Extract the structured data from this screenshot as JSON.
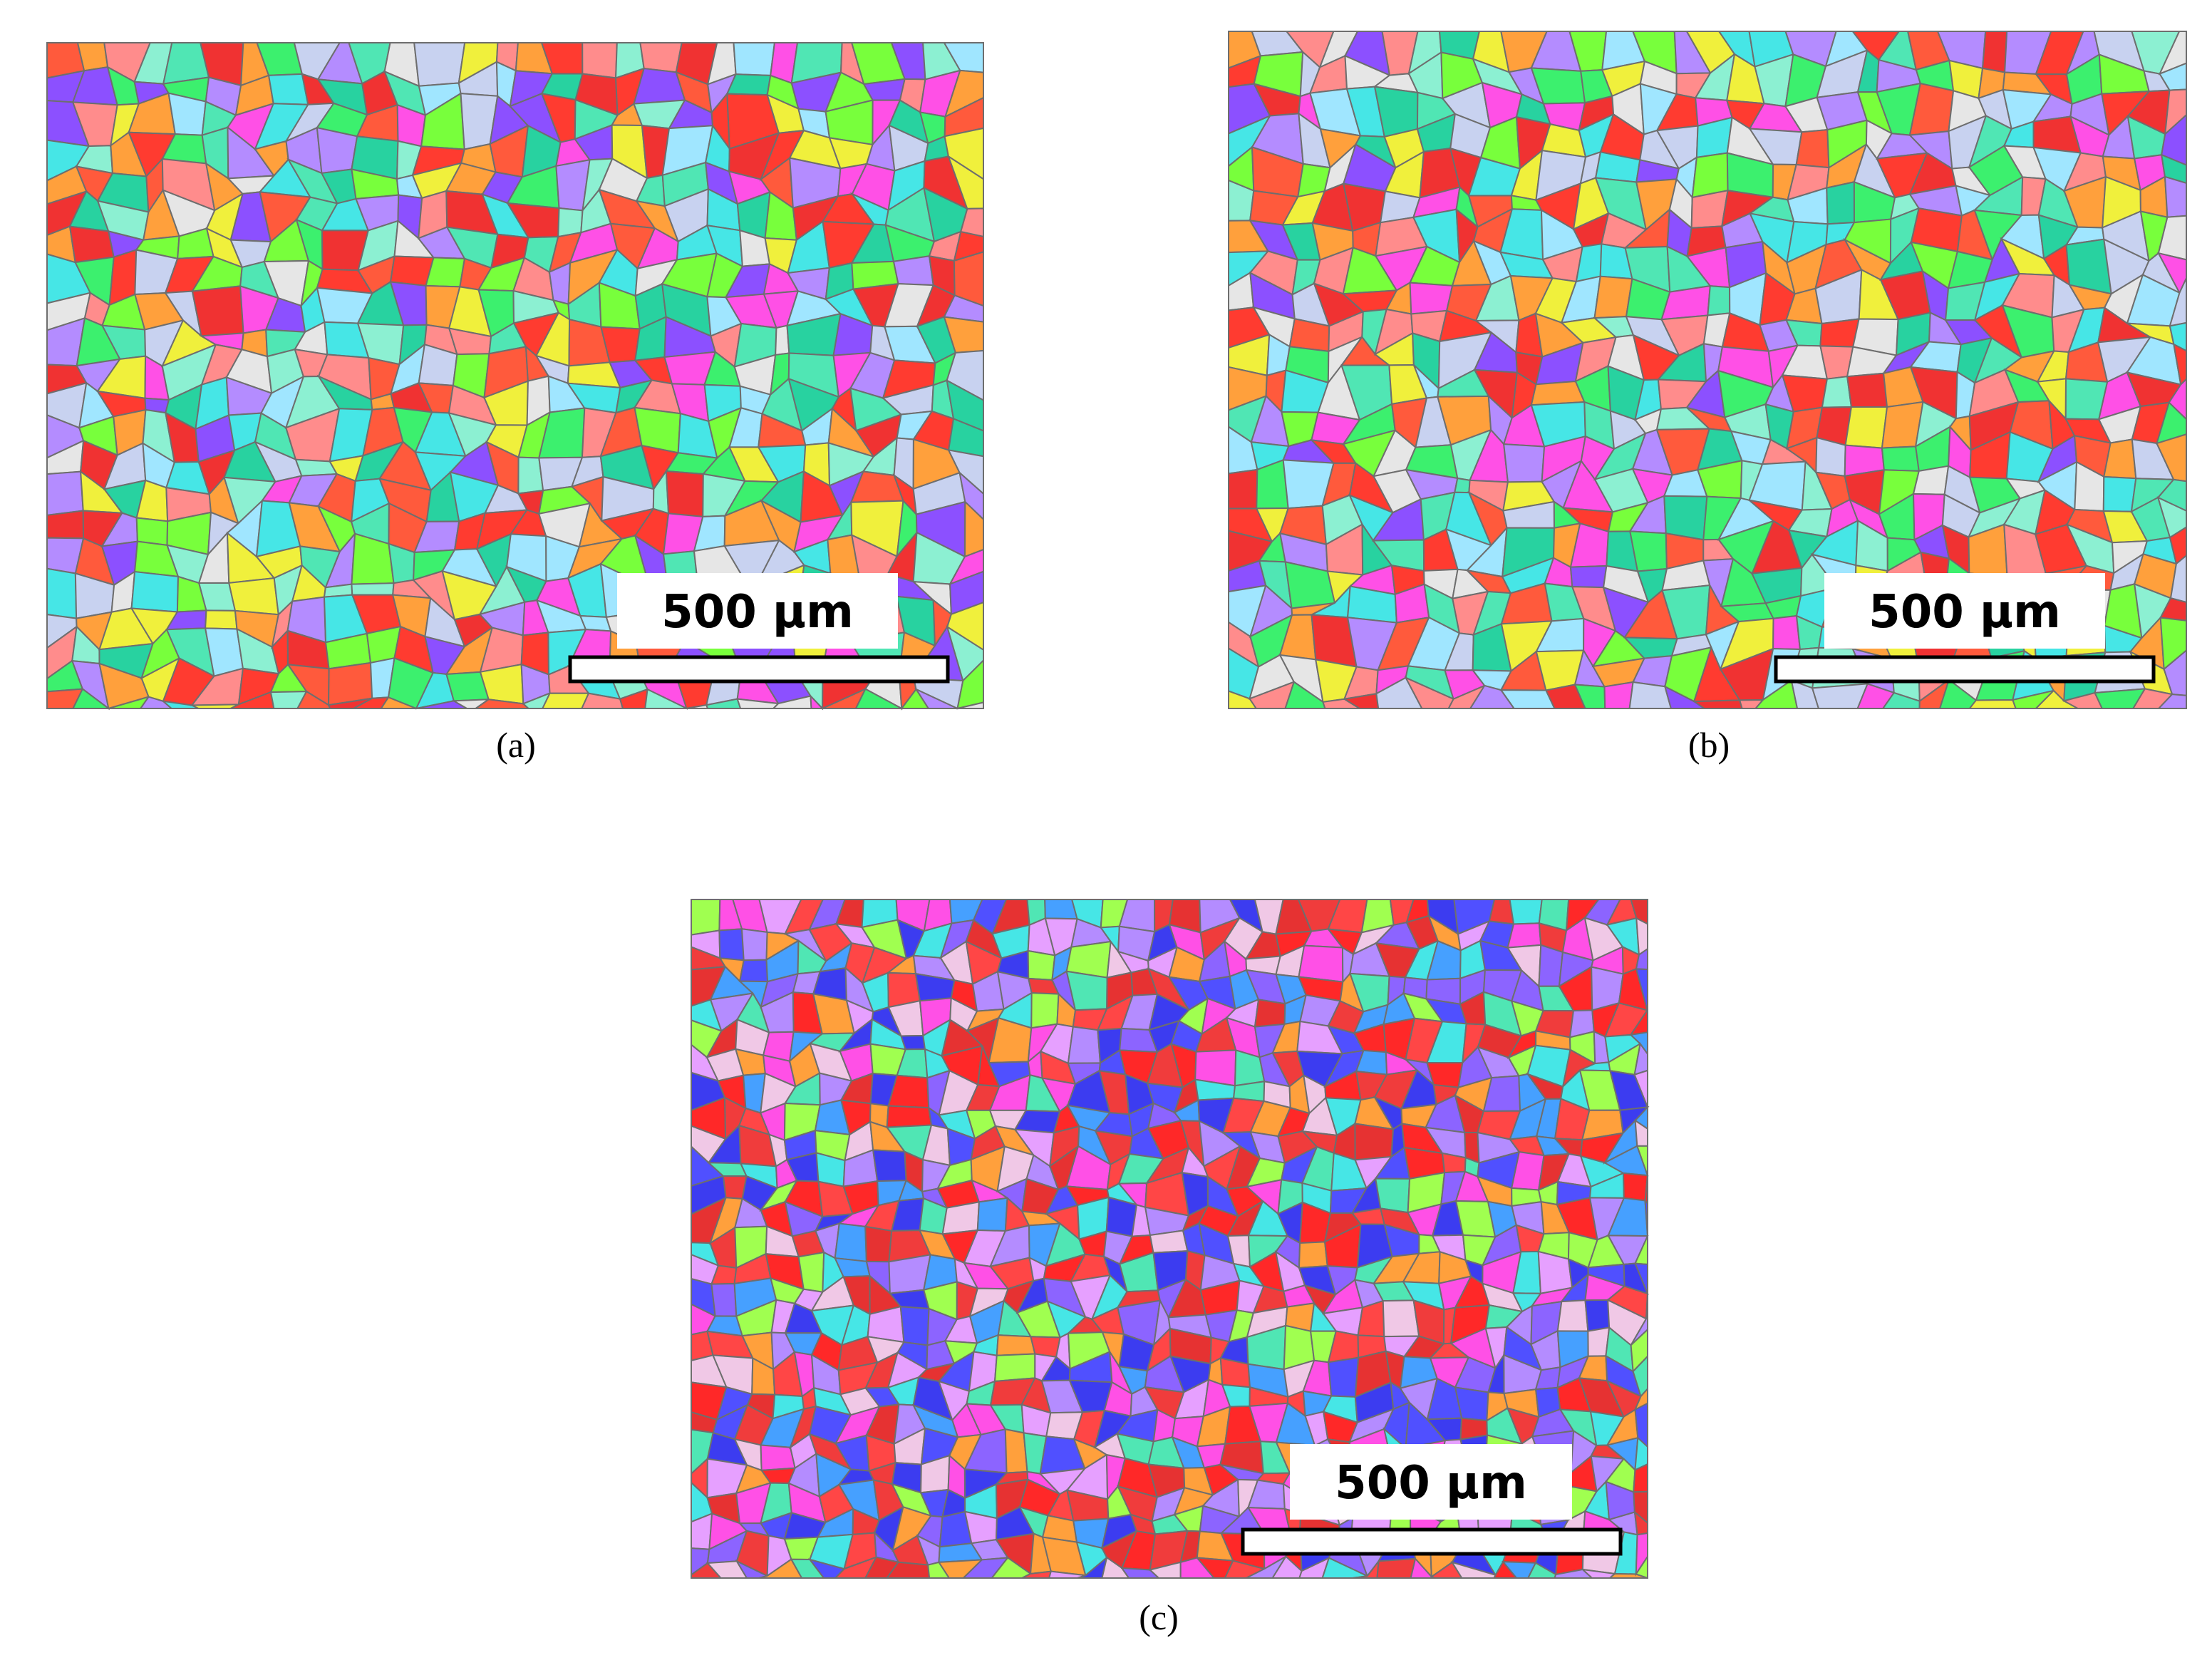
{
  "panels": [
    {
      "label": "(a)",
      "scale_bar": "500 μm"
    },
    {
      "label": "(b)",
      "scale_bar": "500 μm"
    },
    {
      "label": "(c)",
      "scale_bar": "500 μm"
    }
  ]
}
